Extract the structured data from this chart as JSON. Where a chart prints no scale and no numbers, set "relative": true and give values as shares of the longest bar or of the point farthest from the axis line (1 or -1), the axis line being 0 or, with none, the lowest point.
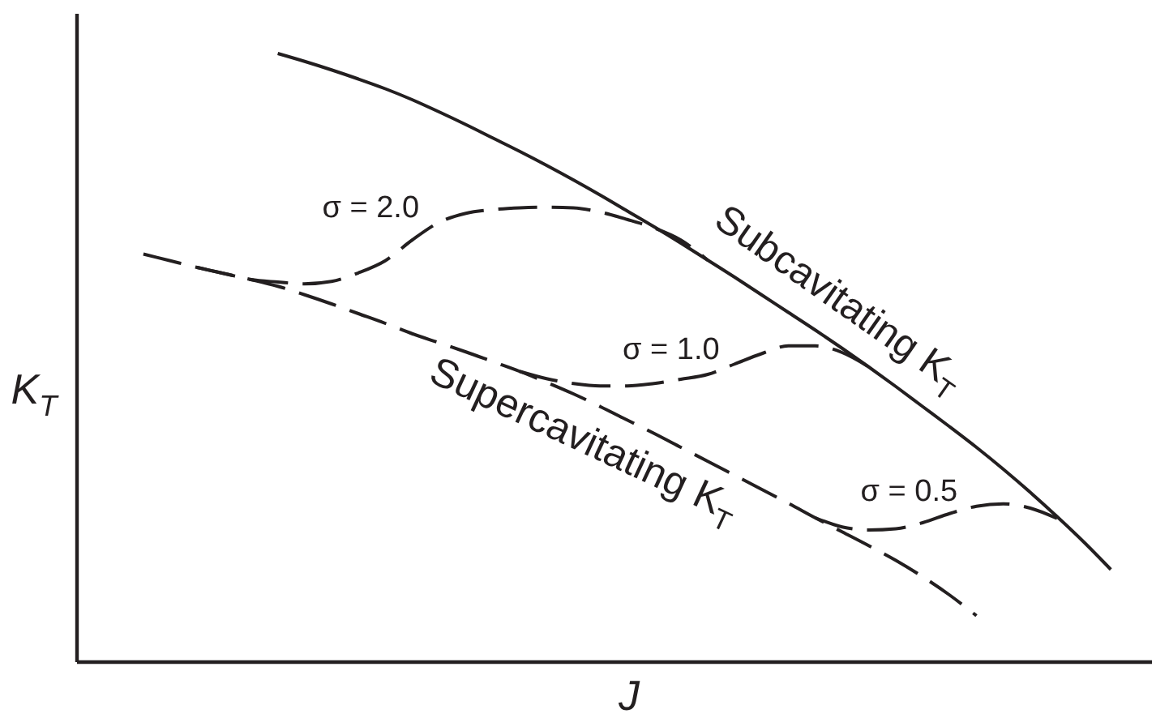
{
  "chart_data": {
    "type": "line",
    "relative": true,
    "xlabel": "J",
    "ylabel": "K$_{T}$",
    "categories": [
      null,
      null,
      null,
      null,
      null,
      null,
      null,
      null,
      null,
      null,
      null,
      null,
      null,
      null,
      null,
      null,
      null,
      null,
      null,
      null,
      null,
      null,
      null,
      null,
      null,
      null,
      null,
      null,
      null,
      null,
      null,
      null,
      null,
      null,
      null,
      null,
      null,
      null,
      null,
      null
    ],
    "series": [
      {
        "name": "Subcavitating K$_{T}$",
        "color": "#231f20",
        "line_style": "solid",
        "values": [
          null,
          null,
          null,
          null,
          null,
          null,
          null,
          1.0,
          0.987,
          0.973,
          0.958,
          0.942,
          0.924,
          0.904,
          0.883,
          0.861,
          0.839,
          0.816,
          0.792,
          0.767,
          0.741,
          0.715,
          0.688,
          0.66,
          0.632,
          0.603,
          0.574,
          0.545,
          0.515,
          0.484,
          0.452,
          0.419,
          0.386,
          0.352,
          0.316,
          0.278,
          0.238,
          0.196,
          0.151,
          null
        ]
      },
      {
        "name": "Supercavitating K$_{T}$",
        "color": "#231f20",
        "line_style": "dashed",
        "values": [
          null,
          null,
          0.67,
          0.659,
          0.648,
          0.638,
          0.628,
          0.617,
          0.603,
          0.588,
          0.572,
          0.556,
          0.539,
          0.524,
          0.509,
          0.493,
          0.477,
          0.459,
          0.44,
          0.419,
          0.397,
          0.375,
          0.352,
          0.329,
          0.306,
          0.283,
          0.26,
          0.236,
          0.213,
          0.19,
          0.166,
          0.139,
          0.109,
          0.075,
          null,
          null,
          null,
          null,
          null,
          null
        ]
      },
      {
        "name": "σ = 2.0",
        "color": "#231f20",
        "line_style": "dashed",
        "values": [
          null,
          null,
          null,
          null,
          0.648,
          0.638,
          0.628,
          0.624,
          0.621,
          0.625,
          0.639,
          0.659,
          0.693,
          0.722,
          0.737,
          0.743,
          0.746,
          0.747,
          0.746,
          0.739,
          0.727,
          0.713,
          0.693,
          0.66,
          null,
          null,
          null,
          null,
          null,
          null,
          null,
          null,
          null,
          null,
          null,
          null,
          null,
          null,
          null,
          null
        ]
      },
      {
        "name": "σ = 1.0",
        "color": "#231f20",
        "line_style": "dashed",
        "values": [
          null,
          null,
          null,
          null,
          null,
          null,
          null,
          null,
          null,
          null,
          null,
          null,
          null,
          null,
          null,
          null,
          0.477,
          0.465,
          0.457,
          0.453,
          0.453,
          0.457,
          0.464,
          0.472,
          0.489,
          0.506,
          0.519,
          0.519,
          0.508,
          0.484,
          null,
          null,
          null,
          null,
          null,
          null,
          null,
          null,
          null,
          null
        ]
      },
      {
        "name": "σ = 0.5",
        "color": "#231f20",
        "line_style": "dashed",
        "values": [
          null,
          null,
          null,
          null,
          null,
          null,
          null,
          null,
          null,
          null,
          null,
          null,
          null,
          null,
          null,
          null,
          null,
          null,
          null,
          null,
          null,
          null,
          null,
          null,
          null,
          null,
          null,
          0.236,
          0.221,
          0.216,
          0.218,
          0.228,
          0.243,
          0.255,
          0.259,
          0.252,
          0.235,
          null,
          null,
          null
        ]
      }
    ]
  }
}
